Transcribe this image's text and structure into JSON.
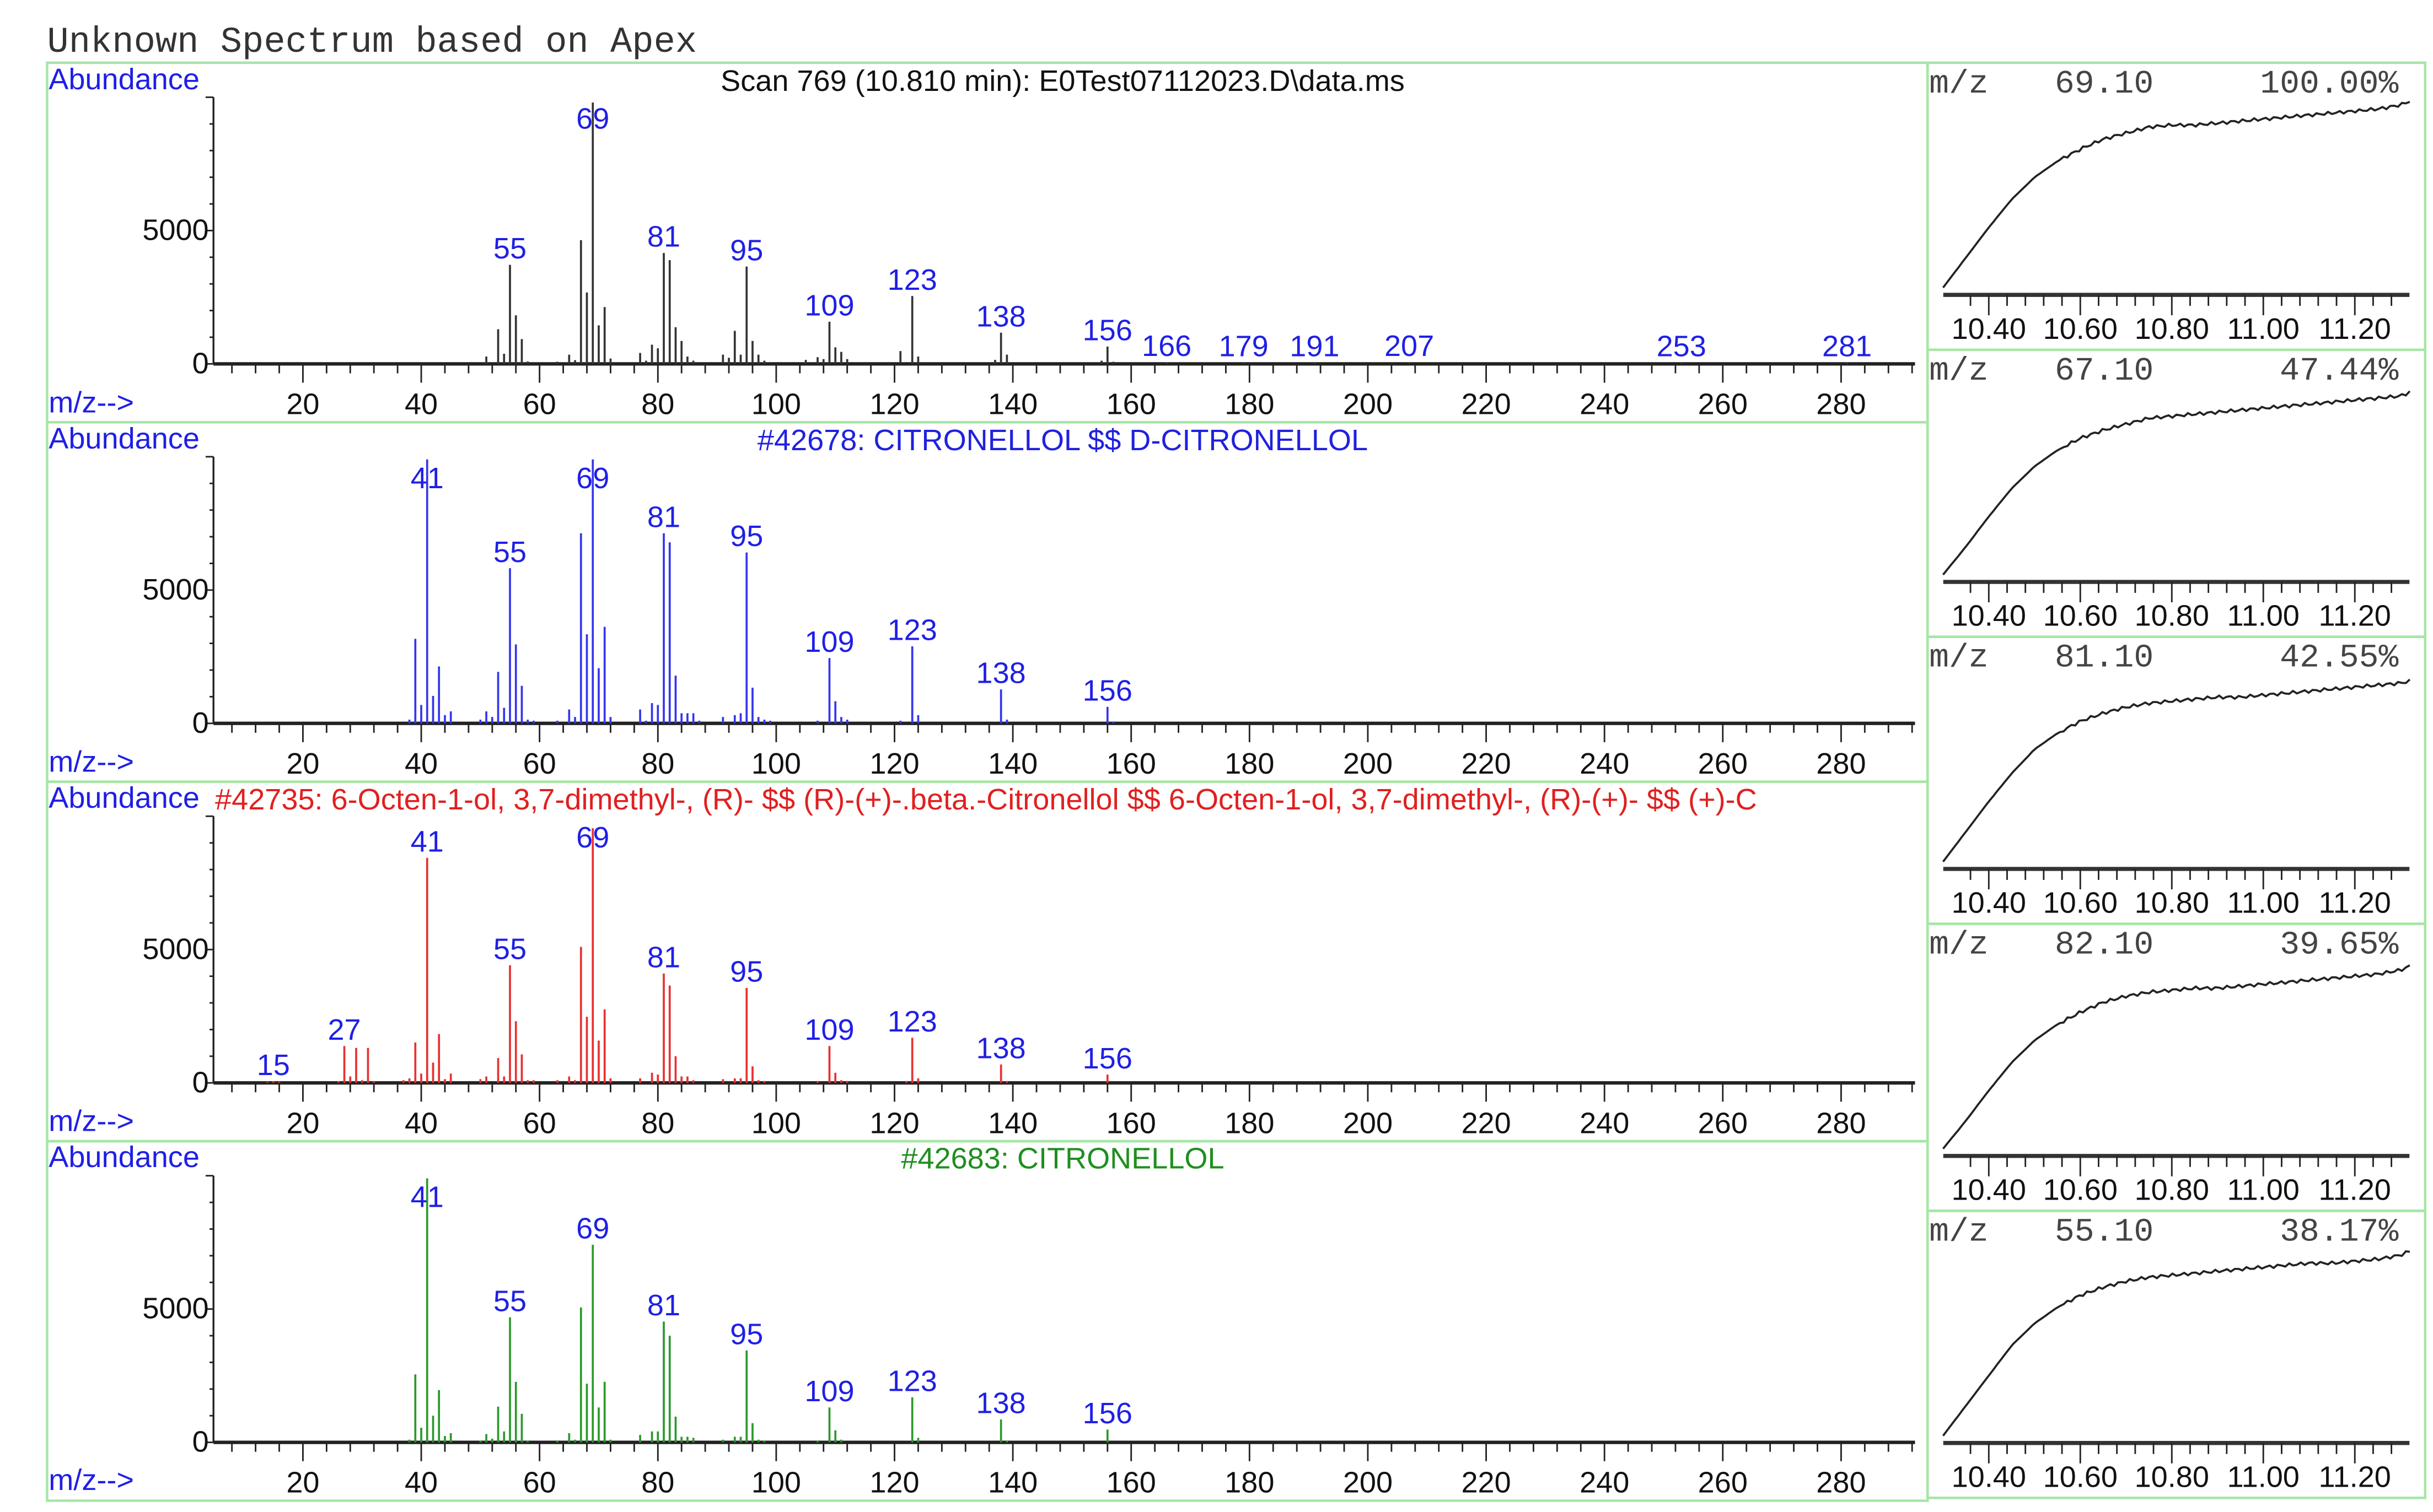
{
  "header": {
    "title": "Unknown Spectrum based on Apex"
  },
  "colors": {
    "frame": "#a6e6a6",
    "label_blue": "#1f1fe6",
    "scan": "#333333",
    "ref1": "#3535ee",
    "ref2": "#e83030",
    "ref3": "#2a9a2a"
  },
  "chart_data": [
    {
      "type": "bar",
      "title": "Scan 769 (10.810 min): E0Test07112023.D\\data.ms",
      "title_color": "#111111",
      "color": "#333333",
      "ylabel": "Abundance",
      "xlabel": "m/z-->",
      "xlim": [
        5,
        292
      ],
      "ylim": [
        0,
        10000
      ],
      "x_ticks": [
        20,
        40,
        60,
        80,
        100,
        120,
        140,
        160,
        180,
        200,
        220,
        240,
        260,
        280
      ],
      "y_ticks": [
        0,
        5000
      ],
      "labels": [
        55,
        69,
        81,
        95,
        109,
        123,
        138,
        156,
        166,
        179,
        191,
        207,
        253,
        281
      ],
      "peaks": [
        [
          51,
          275
        ],
        [
          53,
          1300
        ],
        [
          54,
          380
        ],
        [
          55,
          3715
        ],
        [
          56,
          1820
        ],
        [
          57,
          930
        ],
        [
          58,
          90
        ],
        [
          63,
          80
        ],
        [
          65,
          345
        ],
        [
          66,
          140
        ],
        [
          67,
          4640
        ],
        [
          68,
          2680
        ],
        [
          69,
          9800
        ],
        [
          70,
          1445
        ],
        [
          71,
          2130
        ],
        [
          72,
          200
        ],
        [
          77,
          410
        ],
        [
          78,
          120
        ],
        [
          79,
          720
        ],
        [
          80,
          585
        ],
        [
          81,
          4160
        ],
        [
          82,
          3890
        ],
        [
          83,
          1375
        ],
        [
          84,
          860
        ],
        [
          85,
          275
        ],
        [
          86,
          120
        ],
        [
          91,
          345
        ],
        [
          92,
          230
        ],
        [
          93,
          1240
        ],
        [
          94,
          345
        ],
        [
          95,
          3650
        ],
        [
          96,
          860
        ],
        [
          97,
          345
        ],
        [
          98,
          120
        ],
        [
          105,
          150
        ],
        [
          107,
          250
        ],
        [
          108,
          180
        ],
        [
          109,
          1580
        ],
        [
          110,
          620
        ],
        [
          111,
          450
        ],
        [
          112,
          180
        ],
        [
          121,
          480
        ],
        [
          123,
          2545
        ],
        [
          124,
          275
        ],
        [
          137,
          150
        ],
        [
          138,
          1170
        ],
        [
          139,
          345
        ],
        [
          155,
          120
        ],
        [
          156,
          650
        ],
        [
          157,
          80
        ],
        [
          166,
          60
        ],
        [
          179,
          50
        ],
        [
          191,
          50
        ],
        [
          207,
          60
        ],
        [
          253,
          50
        ],
        [
          281,
          50
        ]
      ]
    },
    {
      "type": "bar",
      "title": "#42678: CITRONELLOL $$ D-CITRONELLOL",
      "title_color": "#2020e0",
      "color": "#3535ee",
      "ylabel": "Abundance",
      "xlabel": "m/z-->",
      "xlim": [
        5,
        292
      ],
      "ylim": [
        0,
        10000
      ],
      "x_ticks": [
        20,
        40,
        60,
        80,
        100,
        120,
        140,
        160,
        180,
        200,
        220,
        240,
        260,
        280
      ],
      "y_ticks": [
        0,
        5000
      ],
      "labels": [
        41,
        55,
        69,
        81,
        95,
        109,
        123,
        138,
        156
      ],
      "peaks": [
        [
          38,
          140
        ],
        [
          39,
          3170
        ],
        [
          40,
          690
        ],
        [
          41,
          9900
        ],
        [
          42,
          1030
        ],
        [
          43,
          2135
        ],
        [
          44,
          310
        ],
        [
          45,
          450
        ],
        [
          50,
          140
        ],
        [
          51,
          450
        ],
        [
          52,
          240
        ],
        [
          53,
          1930
        ],
        [
          54,
          585
        ],
        [
          55,
          5820
        ],
        [
          56,
          2960
        ],
        [
          57,
          1410
        ],
        [
          58,
          140
        ],
        [
          59,
          100
        ],
        [
          63,
          100
        ],
        [
          65,
          520
        ],
        [
          66,
          240
        ],
        [
          67,
          7130
        ],
        [
          68,
          3340
        ],
        [
          69,
          9900
        ],
        [
          70,
          2070
        ],
        [
          71,
          3620
        ],
        [
          72,
          240
        ],
        [
          77,
          520
        ],
        [
          78,
          100
        ],
        [
          79,
          760
        ],
        [
          80,
          690
        ],
        [
          81,
          7130
        ],
        [
          82,
          6790
        ],
        [
          83,
          1790
        ],
        [
          84,
          380
        ],
        [
          85,
          380
        ],
        [
          86,
          380
        ],
        [
          87,
          100
        ],
        [
          91,
          240
        ],
        [
          93,
          310
        ],
        [
          94,
          380
        ],
        [
          95,
          6410
        ],
        [
          96,
          1340
        ],
        [
          97,
          240
        ],
        [
          98,
          140
        ],
        [
          99,
          100
        ],
        [
          107,
          100
        ],
        [
          109,
          2450
        ],
        [
          110,
          830
        ],
        [
          111,
          240
        ],
        [
          112,
          140
        ],
        [
          121,
          100
        ],
        [
          123,
          2890
        ],
        [
          124,
          310
        ],
        [
          138,
          1275
        ],
        [
          139,
          140
        ],
        [
          156,
          620
        ],
        [
          157,
          70
        ]
      ]
    },
    {
      "type": "bar",
      "title": "#42735: 6-Octen-1-ol, 3,7-dimethyl-, (R)- $$ (R)-(+)-.beta.-Citronellol $$ 6-Octen-1-ol, 3,7-dimethyl-, (R)-(+)- $$ (+)-C",
      "title_color": "#e02020",
      "color": "#e83030",
      "ylabel": "Abundance",
      "xlabel": "m/z-->",
      "xlim": [
        5,
        292
      ],
      "ylim": [
        0,
        10000
      ],
      "x_ticks": [
        20,
        40,
        60,
        80,
        100,
        120,
        140,
        160,
        180,
        200,
        220,
        240,
        260,
        280
      ],
      "y_ticks": [
        0,
        5000
      ],
      "labels": [
        15,
        27,
        41,
        55,
        69,
        81,
        95,
        109,
        123,
        138,
        156
      ],
      "peaks": [
        [
          14,
          40
        ],
        [
          15,
          60
        ],
        [
          16,
          40
        ],
        [
          26,
          60
        ],
        [
          27,
          1380
        ],
        [
          28,
          240
        ],
        [
          29,
          1310
        ],
        [
          30,
          100
        ],
        [
          31,
          1310
        ],
        [
          32,
          70
        ],
        [
          37,
          100
        ],
        [
          38,
          170
        ],
        [
          39,
          1515
        ],
        [
          40,
          345
        ],
        [
          41,
          8440
        ],
        [
          42,
          760
        ],
        [
          43,
          1830
        ],
        [
          44,
          140
        ],
        [
          45,
          345
        ],
        [
          50,
          140
        ],
        [
          51,
          240
        ],
        [
          53,
          930
        ],
        [
          54,
          240
        ],
        [
          55,
          4410
        ],
        [
          56,
          2310
        ],
        [
          57,
          1070
        ],
        [
          58,
          100
        ],
        [
          59,
          100
        ],
        [
          63,
          100
        ],
        [
          65,
          240
        ],
        [
          66,
          100
        ],
        [
          67,
          5100
        ],
        [
          68,
          2480
        ],
        [
          69,
          9550
        ],
        [
          70,
          1585
        ],
        [
          71,
          2755
        ],
        [
          72,
          170
        ],
        [
          77,
          170
        ],
        [
          79,
          380
        ],
        [
          80,
          310
        ],
        [
          81,
          4100
        ],
        [
          82,
          3650
        ],
        [
          83,
          1000
        ],
        [
          84,
          240
        ],
        [
          85,
          240
        ],
        [
          86,
          100
        ],
        [
          91,
          140
        ],
        [
          93,
          170
        ],
        [
          94,
          170
        ],
        [
          95,
          3560
        ],
        [
          96,
          620
        ],
        [
          97,
          100
        ],
        [
          98,
          70
        ],
        [
          107,
          70
        ],
        [
          109,
          1380
        ],
        [
          110,
          380
        ],
        [
          111,
          100
        ],
        [
          112,
          70
        ],
        [
          122,
          70
        ],
        [
          123,
          1690
        ],
        [
          124,
          170
        ],
        [
          138,
          690
        ],
        [
          139,
          70
        ],
        [
          156,
          310
        ]
      ]
    },
    {
      "type": "bar",
      "title": "#42683: CITRONELLOL",
      "title_color": "#1f8f1f",
      "color": "#2a9a2a",
      "ylabel": "Abundance",
      "xlabel": "m/z-->",
      "xlim": [
        5,
        292
      ],
      "ylim": [
        0,
        10000
      ],
      "x_ticks": [
        20,
        40,
        60,
        80,
        100,
        120,
        140,
        160,
        180,
        200,
        220,
        240,
        260,
        280
      ],
      "y_ticks": [
        0,
        5000
      ],
      "labels": [
        41,
        55,
        69,
        81,
        95,
        109,
        123,
        138,
        156
      ],
      "peaks": [
        [
          38,
          100
        ],
        [
          39,
          2550
        ],
        [
          40,
          550
        ],
        [
          41,
          9900
        ],
        [
          42,
          1000
        ],
        [
          43,
          1960
        ],
        [
          44,
          240
        ],
        [
          45,
          345
        ],
        [
          50,
          70
        ],
        [
          51,
          310
        ],
        [
          52,
          140
        ],
        [
          53,
          1340
        ],
        [
          54,
          410
        ],
        [
          55,
          4690
        ],
        [
          56,
          2270
        ],
        [
          57,
          1070
        ],
        [
          58,
          70
        ],
        [
          63,
          70
        ],
        [
          65,
          345
        ],
        [
          66,
          100
        ],
        [
          67,
          5060
        ],
        [
          68,
          2200
        ],
        [
          69,
          7410
        ],
        [
          70,
          1310
        ],
        [
          71,
          2270
        ],
        [
          72,
          100
        ],
        [
          77,
          280
        ],
        [
          79,
          410
        ],
        [
          80,
          410
        ],
        [
          81,
          4530
        ],
        [
          82,
          4000
        ],
        [
          83,
          965
        ],
        [
          84,
          210
        ],
        [
          85,
          210
        ],
        [
          86,
          170
        ],
        [
          91,
          100
        ],
        [
          93,
          210
        ],
        [
          94,
          210
        ],
        [
          95,
          3445
        ],
        [
          96,
          720
        ],
        [
          97,
          100
        ],
        [
          98,
          70
        ],
        [
          107,
          70
        ],
        [
          109,
          1310
        ],
        [
          110,
          450
        ],
        [
          111,
          100
        ],
        [
          123,
          1690
        ],
        [
          124,
          170
        ],
        [
          138,
          860
        ],
        [
          139,
          70
        ],
        [
          156,
          480
        ]
      ]
    },
    {
      "type": "line",
      "mz_label": "m/z",
      "mz": "69.10",
      "percent": "100.00%",
      "x_ticks": [
        "10.40",
        "10.60",
        "10.80",
        "11.00",
        "11.20"
      ],
      "x": [
        10.3,
        10.35,
        10.4,
        10.45,
        10.5,
        10.55,
        10.6,
        10.65,
        10.7,
        10.75,
        10.8,
        10.85,
        10.9,
        10.95,
        11.0,
        11.05,
        11.1,
        11.15,
        11.2,
        11.25,
        11.3,
        11.32
      ],
      "y": [
        2,
        17,
        32,
        46,
        57,
        65,
        71,
        76,
        79,
        82,
        83,
        83,
        84,
        85,
        86,
        87,
        88,
        89,
        90,
        91,
        93,
        95
      ]
    },
    {
      "type": "line",
      "mz_label": "m/z",
      "mz": "67.10",
      "percent": "47.44%",
      "x_ticks": [
        "10.40",
        "10.60",
        "10.80",
        "11.00",
        "11.20"
      ],
      "x": [
        10.3,
        10.35,
        10.4,
        10.45,
        10.5,
        10.55,
        10.6,
        10.65,
        10.7,
        10.75,
        10.8,
        10.85,
        10.9,
        10.95,
        11.0,
        11.05,
        11.1,
        11.15,
        11.2,
        11.25,
        11.3,
        11.32
      ],
      "y": [
        2,
        16,
        31,
        45,
        56,
        64,
        70,
        74,
        77,
        80,
        81,
        82,
        83,
        84,
        85,
        86,
        87,
        88,
        89,
        90,
        91,
        93
      ]
    },
    {
      "type": "line",
      "mz_label": "m/z",
      "mz": "81.10",
      "percent": "42.55%",
      "x_ticks": [
        "10.40",
        "10.60",
        "10.80",
        "11.00",
        "11.20"
      ],
      "x": [
        10.3,
        10.35,
        10.4,
        10.45,
        10.5,
        10.55,
        10.6,
        10.65,
        10.7,
        10.75,
        10.8,
        10.85,
        10.9,
        10.95,
        11.0,
        11.05,
        11.1,
        11.15,
        11.2,
        11.25,
        11.3,
        11.32
      ],
      "y": [
        2,
        17,
        32,
        46,
        58,
        66,
        72,
        76,
        79,
        81,
        82,
        83,
        84,
        84,
        85,
        86,
        87,
        88,
        89,
        90,
        91,
        92
      ]
    },
    {
      "type": "line",
      "mz_label": "m/z",
      "mz": "82.10",
      "percent": "39.65%",
      "x_ticks": [
        "10.40",
        "10.60",
        "10.80",
        "11.00",
        "11.20"
      ],
      "x": [
        10.3,
        10.35,
        10.4,
        10.45,
        10.5,
        10.55,
        10.6,
        10.65,
        10.7,
        10.75,
        10.8,
        10.85,
        10.9,
        10.95,
        11.0,
        11.05,
        11.1,
        11.15,
        11.2,
        11.25,
        11.3,
        11.32
      ],
      "y": [
        2,
        16,
        31,
        45,
        56,
        64,
        70,
        75,
        78,
        80,
        81,
        82,
        82,
        83,
        84,
        85,
        86,
        87,
        88,
        89,
        91,
        93
      ]
    },
    {
      "type": "line",
      "mz_label": "m/z",
      "mz": "55.10",
      "percent": "38.17%",
      "x_ticks": [
        "10.40",
        "10.60",
        "10.80",
        "11.00",
        "11.20"
      ],
      "x": [
        10.3,
        10.35,
        10.4,
        10.45,
        10.5,
        10.55,
        10.6,
        10.65,
        10.7,
        10.75,
        10.8,
        10.85,
        10.9,
        10.95,
        11.0,
        11.05,
        11.1,
        11.15,
        11.2,
        11.25,
        11.3,
        11.32
      ],
      "y": [
        2,
        17,
        32,
        47,
        58,
        66,
        72,
        76,
        79,
        81,
        82,
        83,
        84,
        85,
        86,
        87,
        88,
        88,
        89,
        90,
        92,
        94
      ]
    }
  ]
}
